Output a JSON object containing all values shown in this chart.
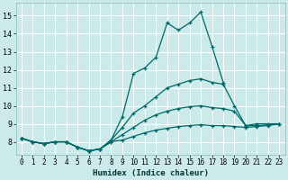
{
  "title": "",
  "xlabel": "Humidex (Indice chaleur)",
  "xlim": [
    -0.5,
    23.5
  ],
  "ylim": [
    7.3,
    15.7
  ],
  "bg_color": "#cceaea",
  "grid_color": "#ffffff",
  "line_color": "#006868",
  "xticks": [
    0,
    1,
    2,
    3,
    4,
    5,
    6,
    7,
    8,
    9,
    10,
    11,
    12,
    13,
    14,
    15,
    16,
    17,
    18,
    19,
    20,
    21,
    22,
    23
  ],
  "yticks": [
    8,
    9,
    10,
    11,
    12,
    13,
    14,
    15
  ],
  "lines": [
    {
      "x": [
        0,
        1,
        2,
        3,
        4,
        5,
        6,
        7,
        8,
        9,
        10,
        11,
        12,
        13,
        14,
        15,
        16,
        17,
        18
      ],
      "y": [
        8.2,
        8.0,
        7.9,
        8.0,
        8.0,
        7.7,
        7.5,
        7.6,
        8.1,
        9.4,
        11.8,
        12.1,
        12.7,
        14.6,
        14.2,
        14.6,
        15.2,
        13.3,
        11.3
      ]
    },
    {
      "x": [
        0,
        1,
        2,
        3,
        4,
        5,
        6,
        7,
        8,
        9,
        10,
        11,
        12,
        13,
        14,
        15,
        16,
        17,
        18,
        19,
        20,
        21,
        22,
        23
      ],
      "y": [
        8.2,
        8.0,
        7.9,
        8.0,
        8.0,
        7.7,
        7.5,
        7.6,
        8.1,
        8.8,
        9.6,
        10.0,
        10.5,
        11.0,
        11.2,
        11.4,
        11.5,
        11.3,
        11.2,
        10.0,
        8.9,
        9.0,
        9.0,
        9.0
      ]
    },
    {
      "x": [
        0,
        1,
        2,
        3,
        4,
        5,
        6,
        7,
        8,
        9,
        10,
        11,
        12,
        13,
        14,
        15,
        16,
        17,
        18,
        19,
        20,
        21,
        22,
        23
      ],
      "y": [
        8.2,
        8.0,
        7.9,
        8.0,
        8.0,
        7.7,
        7.5,
        7.6,
        8.0,
        8.4,
        8.8,
        9.2,
        9.5,
        9.7,
        9.85,
        9.95,
        10.0,
        9.9,
        9.85,
        9.7,
        8.9,
        8.9,
        8.95,
        9.0
      ]
    },
    {
      "x": [
        0,
        1,
        2,
        3,
        4,
        5,
        6,
        7,
        8,
        9,
        10,
        11,
        12,
        13,
        14,
        15,
        16,
        17,
        18,
        19,
        20,
        21,
        22,
        23
      ],
      "y": [
        8.2,
        8.0,
        7.9,
        8.0,
        8.0,
        7.7,
        7.5,
        7.6,
        8.0,
        8.1,
        8.3,
        8.5,
        8.65,
        8.75,
        8.85,
        8.9,
        8.95,
        8.9,
        8.9,
        8.85,
        8.8,
        8.85,
        8.9,
        9.0
      ]
    }
  ]
}
